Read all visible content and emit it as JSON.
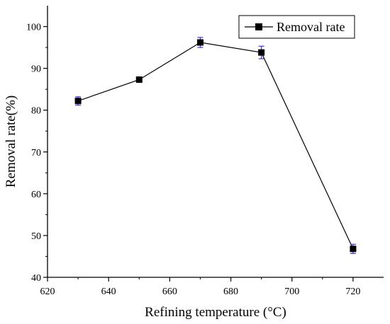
{
  "chart_data": {
    "type": "line",
    "title": "",
    "xlabel": "Refining temperature (°C)",
    "ylabel": "Removal rate(%)",
    "xlim": [
      620,
      730
    ],
    "ylim": [
      40,
      105
    ],
    "xticks": [
      620,
      640,
      660,
      680,
      700,
      720
    ],
    "yticks": [
      40,
      50,
      60,
      70,
      80,
      90,
      100
    ],
    "grid": false,
    "legend_position": "top-right",
    "series": [
      {
        "name": "Removal rate",
        "marker": "square",
        "color": "#000000",
        "error_bar_color": "#3a35d6",
        "x": [
          630,
          650,
          670,
          690,
          720
        ],
        "y": [
          82.2,
          87.3,
          96.2,
          93.8,
          46.8
        ],
        "error": [
          1.0,
          0.6,
          1.2,
          1.5,
          1.1
        ]
      }
    ]
  }
}
